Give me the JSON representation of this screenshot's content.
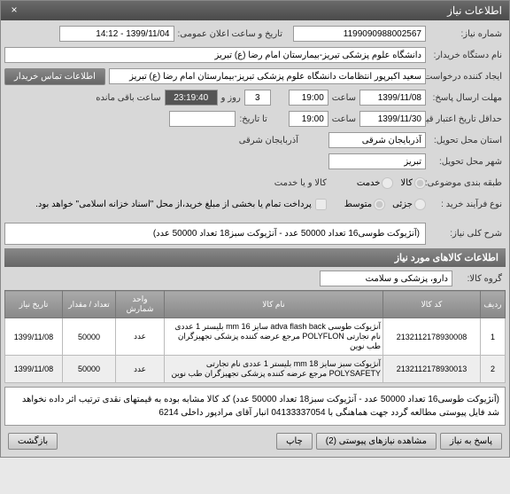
{
  "window": {
    "title": "اطلاعات نیاز"
  },
  "header": {
    "need_number_label": "شماره نیاز:",
    "need_number": "1199090988002567",
    "announce_label": "تاریخ و ساعت اعلان عمومی:",
    "announce_value": "1399/11/04 - 14:12",
    "buyer_label": "نام دستگاه خریدار:",
    "buyer_value": "دانشگاه علوم پزشکی تبریز-بیمارستان امام رضا (ع) تبریز",
    "creator_label": "ایجاد کننده درخواست:",
    "creator_value": "سعید اکبرپور انتظامات دانشگاه علوم پزشکی تبریز-بیمارستان امام رضا (ع) تبریز",
    "contact_btn": "اطلاعات تماس خریدار",
    "send_deadline_label": "مهلت ارسال پاسخ:",
    "send_date": "1399/11/08",
    "time_label": "ساعت",
    "send_time": "19:00",
    "countdown_days": "3",
    "days_and": "روز و",
    "countdown_time": "23:19:40",
    "remaining": "ساعت باقی مانده",
    "validity_label": "حداقل تاریخ اعتبار قیمت:",
    "validity_date": "1399/11/30",
    "validity_time": "19:00",
    "delivery_to_label": "تا تاریخ:",
    "delivery_province_label": "استان محل تحویل:",
    "province": "آذربایجان شرقی",
    "city_label": "آذربایجان شرقی",
    "city_delivery_label": "شهر محل تحویل:",
    "city": "تبریز",
    "budget_label": "طبقه بندی موضوعی:",
    "goods_radio": "کالا",
    "services_radio": "خدمت",
    "goods_or_services": "کالا و یا خدمت",
    "process_type_label": "نوع فرآیند خرید :",
    "process_low": "جزئی",
    "process_medium": "متوسط",
    "payment_note": "پرداخت تمام یا بخشی از مبلغ خرید،از محل \"اسناد خزانه اسلامی\" خواهد بود.",
    "main_desc_label": "شرح کلی نیاز:",
    "main_desc": "(آنژیوکت طوسی16 تعداد 50000 عدد - آنژیوکت سبز18  تعداد 50000 عدد)"
  },
  "items_section": {
    "title": "اطلاعات کالاهای مورد نیاز",
    "group_label": "گروه کالا:",
    "group_value": "دارو، پزشکی و سلامت"
  },
  "table": {
    "headers": [
      "ردیف",
      "کد کالا",
      "نام کالا",
      "واحد شمارش",
      "تعداد / مقدار",
      "تاریخ نیاز"
    ],
    "rows": [
      [
        "1",
        "2132112178930008",
        "آنژیوکت طوسی adva flash back سایز mm 16 بلیستر 1 عددی نام تجارتی POLYFLON مرجع عرضه کننده پزشکی تجهیزگران طب نوین",
        "عدد",
        "50000",
        "1399/11/08"
      ],
      [
        "2",
        "2132112178930013",
        "آنژیوکت سبز سایز mm 18 بلیستر 1 عددی نام تجارتی POLYSAFETY مرجع عرضه کننده پزشکی تجهیزگران طب نوین",
        "عدد",
        "50000",
        "1399/11/08"
      ]
    ]
  },
  "note": "(آنژیوکت طوسی16 تعداد 50000 عدد - آنژیوکت سبز18  تعداد 50000 عدد) کد کالا مشابه بوده به قیمتهای نقدی ترتیب اثر داده نخواهد شد فایل پیوستی مطالعه گردد جهت هماهنگی با 04133337054 انبار آقای مرادپور داخلی 6214",
  "footer": {
    "reply": "پاسخ به نیاز",
    "attachments": "مشاهده نیازهای پیوستی (2)",
    "print": "چاپ",
    "back": "بازگشت"
  }
}
